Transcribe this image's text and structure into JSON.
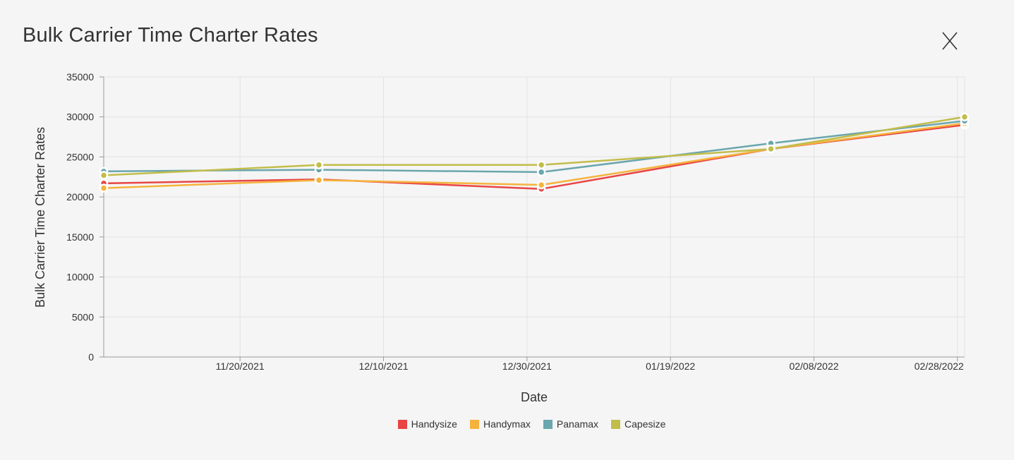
{
  "modal": {
    "title": "Bulk Carrier Time Charter Rates",
    "close_label": "X"
  },
  "chart_data": {
    "type": "line",
    "title": "Bulk Carrier Time Charter Rates",
    "xlabel": "Date",
    "ylabel": "Bulk Carrier Time Charter Rates",
    "x_axis_type": "date",
    "xlim": [
      "2021-11-01",
      "2022-03-01"
    ],
    "ylim": [
      0,
      35000
    ],
    "y_ticks": [
      0,
      5000,
      10000,
      15000,
      20000,
      25000,
      30000,
      35000
    ],
    "x_ticks": [
      "11/20/2021",
      "12/10/2021",
      "12/30/2021",
      "01/19/2022",
      "02/08/2022",
      "02/28/2022"
    ],
    "x_tick_dates": [
      "2021-11-20",
      "2021-12-10",
      "2021-12-30",
      "2022-01-19",
      "2022-02-08",
      "2022-02-28"
    ],
    "grid": true,
    "legend_position": "bottom-center",
    "x": [
      "2021-11-01",
      "2021-12-01",
      "2022-01-01",
      "2022-02-02",
      "2022-03-01"
    ],
    "series": [
      {
        "name": "Handysize",
        "color": "#e84545",
        "values": [
          21700,
          22200,
          21000,
          26000,
          29000
        ]
      },
      {
        "name": "Handymax",
        "color": "#f5b33d",
        "values": [
          21100,
          22100,
          21500,
          26000,
          29200
        ]
      },
      {
        "name": "Panamax",
        "color": "#6aa6ad",
        "values": [
          23200,
          23400,
          23100,
          26700,
          29500
        ]
      },
      {
        "name": "Capesize",
        "color": "#c2bd4a",
        "values": [
          22700,
          24000,
          24000,
          26000,
          30000
        ]
      }
    ]
  }
}
